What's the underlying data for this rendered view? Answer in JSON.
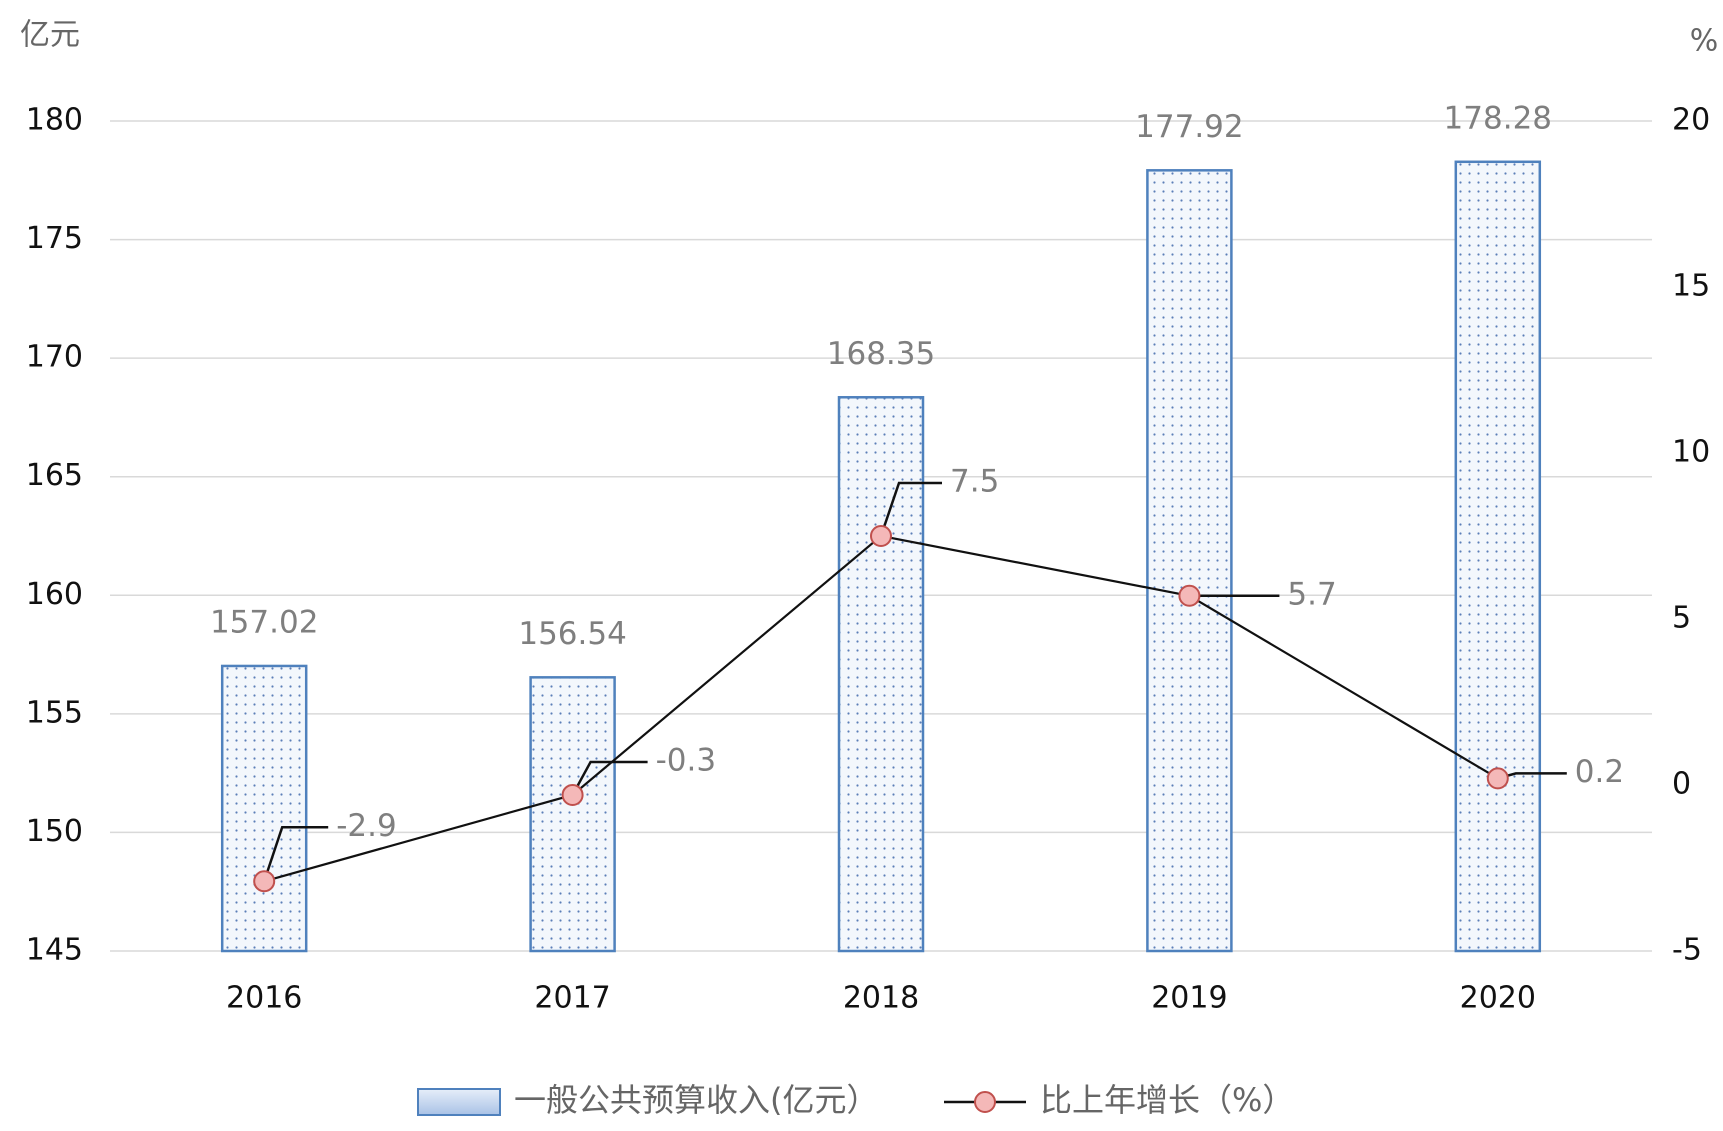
{
  "chart_data": {
    "type": "bar",
    "y_label": "亿元",
    "y2_label": "%",
    "categories": [
      "2016",
      "2017",
      "2018",
      "2019",
      "2020"
    ],
    "series": [
      {
        "name": "一般公共预算收入(亿元）",
        "type": "bar",
        "color": "#4f81bd",
        "values": [
          157.02,
          156.54,
          168.35,
          177.92,
          178.28
        ]
      },
      {
        "name": "比上年增长（%）",
        "type": "line",
        "axis": "y2",
        "color": "#f4b8b8",
        "values": [
          -2.9,
          -0.3,
          7.5,
          5.7,
          0.2
        ]
      }
    ],
    "ylim": [
      145,
      180
    ],
    "yticks": [
      145,
      150,
      155,
      160,
      165,
      170,
      175,
      180
    ],
    "y2lim": [
      -5,
      20
    ],
    "y2ticks": [
      -5,
      0,
      5,
      10,
      15,
      20
    ],
    "grid": true,
    "legend": "bottom"
  }
}
